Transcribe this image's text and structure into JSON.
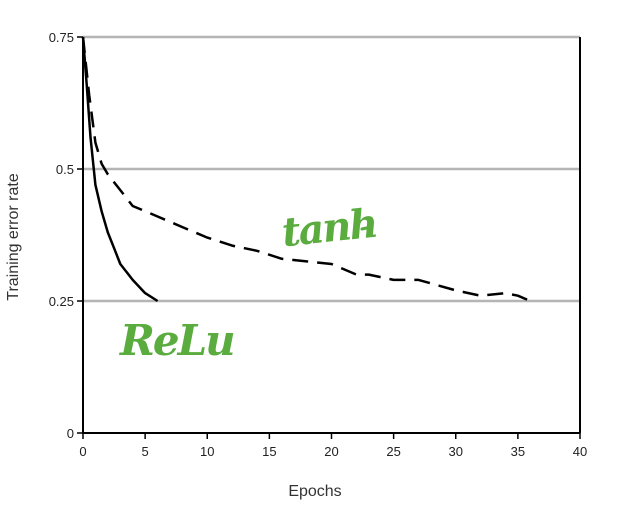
{
  "chart_data": {
    "type": "line",
    "xlabel": "Epochs",
    "ylabel": "Training error rate",
    "xlim": [
      0,
      40
    ],
    "ylim": [
      0,
      0.75
    ],
    "x_ticks": [
      0,
      5,
      10,
      15,
      20,
      25,
      30,
      35,
      40
    ],
    "x_tick_labels": [
      "0",
      "5",
      "10",
      "15",
      "20",
      "25",
      "30",
      "35",
      "40"
    ],
    "y_ticks": [
      0,
      0.25,
      0.5,
      0.75
    ],
    "y_tick_labels": [
      "0",
      "0.25",
      "0.5",
      "0.75"
    ],
    "grid": "horizontal",
    "series": [
      {
        "name": "ReLu",
        "style": "solid",
        "color": "#000000",
        "x": [
          0,
          0.3,
          0.6,
          1,
          1.5,
          2,
          2.5,
          3,
          4,
          5,
          6
        ],
        "y": [
          0.75,
          0.66,
          0.56,
          0.47,
          0.42,
          0.38,
          0.35,
          0.32,
          0.29,
          0.265,
          0.25
        ]
      },
      {
        "name": "tanh",
        "style": "dashed",
        "color": "#000000",
        "x": [
          0,
          0.5,
          1,
          1.5,
          2,
          3,
          4,
          5,
          6,
          7,
          8,
          10,
          12,
          14,
          16,
          18,
          20,
          22,
          23,
          25,
          27,
          30,
          32,
          34,
          35,
          36
        ],
        "y": [
          0.75,
          0.64,
          0.55,
          0.51,
          0.49,
          0.46,
          0.43,
          0.42,
          0.41,
          0.4,
          0.39,
          0.37,
          0.355,
          0.345,
          0.33,
          0.325,
          0.32,
          0.3,
          0.3,
          0.29,
          0.29,
          0.27,
          0.26,
          0.265,
          0.26,
          0.25
        ]
      }
    ],
    "annotations": [
      {
        "text": "tanh",
        "color": "#5aac3f",
        "style": "handwritten"
      },
      {
        "text": "ReLu",
        "color": "#5aac3f",
        "style": "handwritten"
      }
    ]
  }
}
